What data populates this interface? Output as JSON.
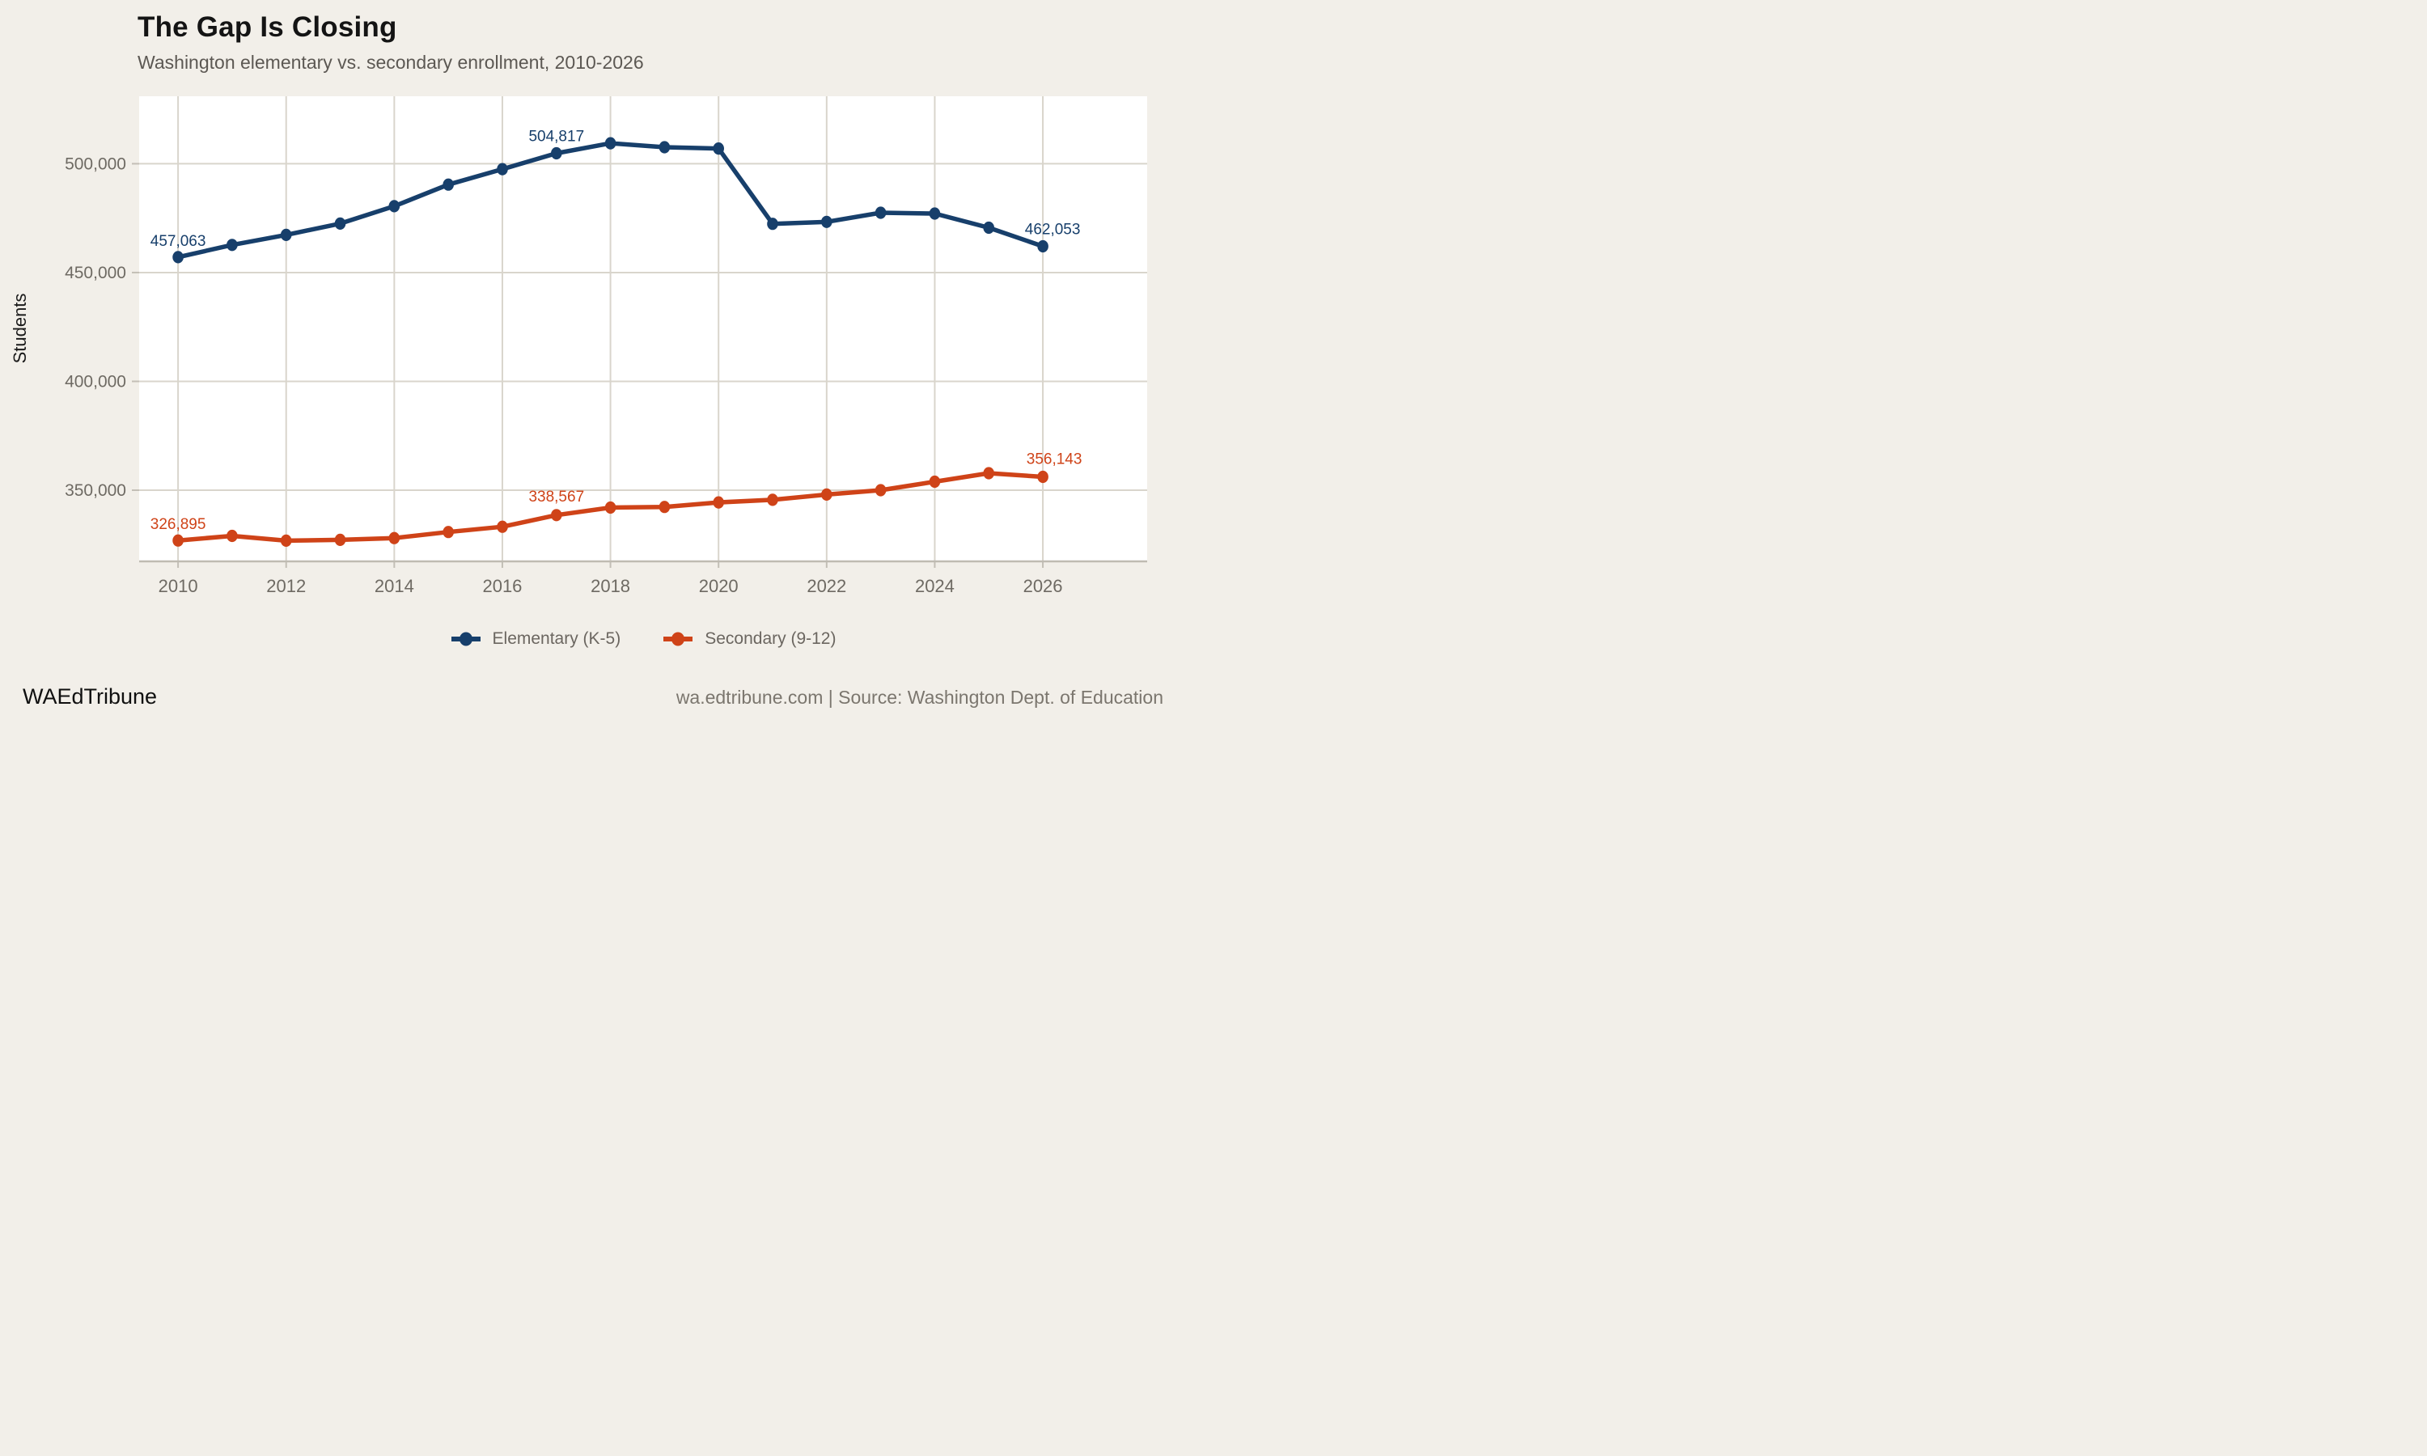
{
  "header": {
    "title": "The Gap Is Closing",
    "subtitle": "Washington elementary vs. secondary enrollment, 2010-2026"
  },
  "footer": {
    "brand": "WAEdTribune",
    "source": "wa.edtribune.com | Source: Washington Dept. of Education"
  },
  "colors": {
    "background": "#f2efe9",
    "plot_background": "#ffffff",
    "gridline": "#d9d5cc",
    "axis_line": "#bfbbb2",
    "tick": "#c3bfb6",
    "tick_label": "#6e6a63",
    "axis_title": "#1a1a1a",
    "elementary": "#173f6b",
    "secondary": "#cf4318"
  },
  "legend": [
    {
      "label": "Elementary (K-5)",
      "color": "#173f6b"
    },
    {
      "label": "Secondary (9-12)",
      "color": "#cf4318"
    }
  ],
  "chart_data": {
    "type": "line",
    "title": "The Gap Is Closing",
    "subtitle": "Washington elementary vs. secondary enrollment, 2010-2026",
    "xlabel": "",
    "ylabel": "Students",
    "x": [
      2010,
      2011,
      2012,
      2013,
      2014,
      2015,
      2016,
      2017,
      2018,
      2019,
      2020,
      2021,
      2022,
      2023,
      2024,
      2025,
      2026
    ],
    "x_tick_years": [
      2010,
      2012,
      2014,
      2016,
      2018,
      2020,
      2022,
      2024,
      2026
    ],
    "y_ticks": [
      350000,
      400000,
      450000,
      500000
    ],
    "xlim": [
      2009.28,
      2027.93
    ],
    "ylim": [
      317300,
      531000
    ],
    "grid": true,
    "legend_position": "bottom",
    "series": [
      {
        "name": "Elementary (K-5)",
        "slug": "elementary",
        "color": "#173f6b",
        "values": [
          457063,
          462700,
          467300,
          472500,
          480500,
          490400,
          497500,
          504817,
          509400,
          507600,
          507000,
          472400,
          473300,
          477500,
          477100,
          470600,
          462053
        ],
        "point_labels": [
          {
            "year": 2010,
            "text": "457,063",
            "dx": 0,
            "dy": -14
          },
          {
            "year": 2017,
            "text": "504,817",
            "dx": 0,
            "dy": -15
          },
          {
            "year": 2026,
            "text": "462,053",
            "dx": 12,
            "dy": -15
          }
        ]
      },
      {
        "name": "Secondary (9-12)",
        "slug": "secondary",
        "color": "#cf4318",
        "values": [
          326895,
          329000,
          326800,
          327200,
          328000,
          330800,
          333200,
          338567,
          342000,
          342300,
          344400,
          345600,
          348000,
          350000,
          353900,
          357800,
          356143
        ],
        "point_labels": [
          {
            "year": 2010,
            "text": "326,895",
            "dx": 0,
            "dy": -14
          },
          {
            "year": 2017,
            "text": "338,567",
            "dx": 0,
            "dy": -17
          },
          {
            "year": 2026,
            "text": "356,143",
            "dx": 14,
            "dy": -16
          }
        ]
      }
    ]
  }
}
